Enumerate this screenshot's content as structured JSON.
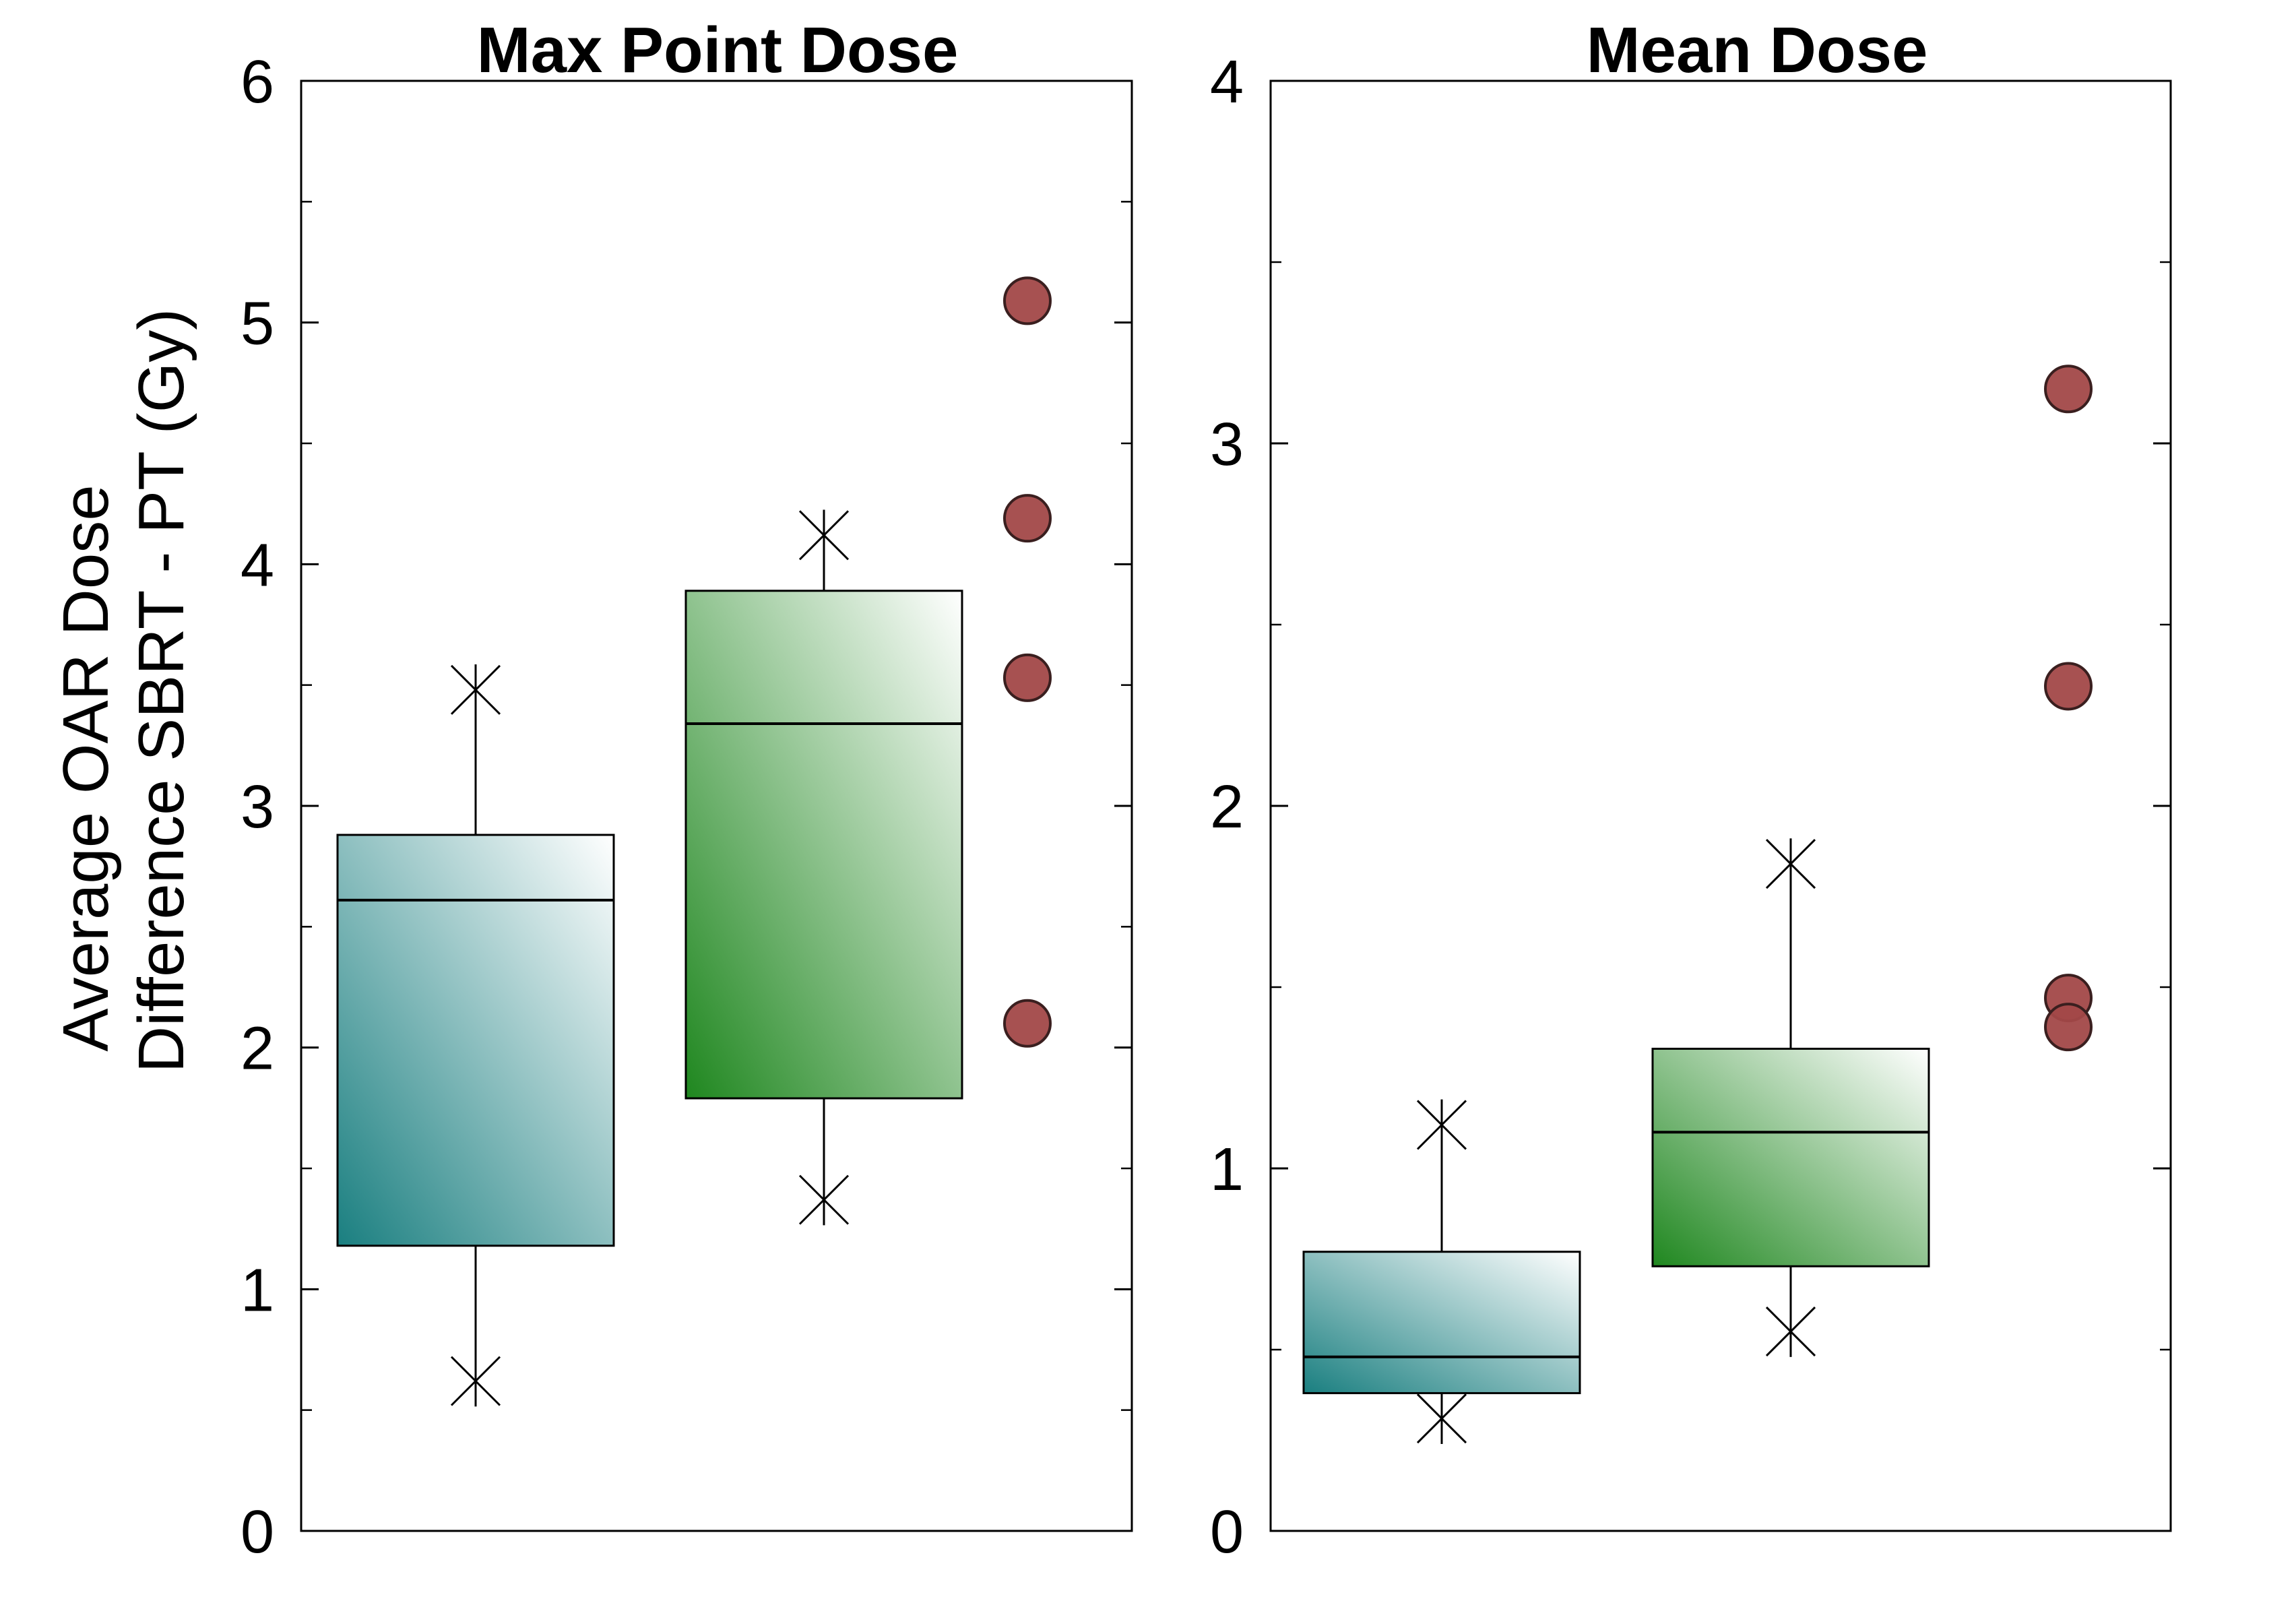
{
  "ylabel_line1": "Average OAR Dose",
  "ylabel_line2": "Difference SBRT - PT (Gy)",
  "colors": {
    "teal": "#1a7f80",
    "green": "#1f871f",
    "outlier_fill": "#a24848",
    "outlier_stroke": "#3a1f1f"
  },
  "chart_data": [
    {
      "type": "box",
      "title": "Max Point Dose",
      "ylim": [
        0,
        6
      ],
      "yticks": [
        0,
        1,
        2,
        3,
        4,
        5,
        6
      ],
      "ytick_labels": [
        "0",
        "1",
        "2",
        "3",
        "4",
        "5",
        "6"
      ],
      "minor_ticks": [
        0.5,
        1.5,
        2.5,
        3.5,
        4.5,
        5.5
      ],
      "boxes": [
        {
          "q1": 1.18,
          "median": 2.61,
          "q3": 2.88,
          "whisker_low": 0.62,
          "whisker_high": 3.48,
          "color": "teal"
        },
        {
          "q1": 1.79,
          "median": 3.34,
          "q3": 3.89,
          "whisker_low": 1.37,
          "whisker_high": 4.12,
          "color": "green"
        }
      ],
      "outliers": [
        5.09,
        4.19,
        3.53,
        2.1
      ]
    },
    {
      "type": "box",
      "title": "Mean Dose",
      "ylim": [
        0,
        4
      ],
      "yticks": [
        0,
        1,
        2,
        3,
        4
      ],
      "ytick_labels": [
        "0",
        "1",
        "2",
        "3",
        "4"
      ],
      "minor_ticks": [
        0.5,
        1.5,
        2.5,
        3.5
      ],
      "boxes": [
        {
          "q1": 0.38,
          "median": 0.48,
          "q3": 0.77,
          "whisker_low": 0.31,
          "whisker_high": 1.12,
          "color": "teal"
        },
        {
          "q1": 0.73,
          "median": 1.1,
          "q3": 1.33,
          "whisker_low": 0.55,
          "whisker_high": 1.84,
          "color": "green"
        }
      ],
      "outliers": [
        3.15,
        2.33,
        1.47,
        1.39
      ]
    }
  ]
}
